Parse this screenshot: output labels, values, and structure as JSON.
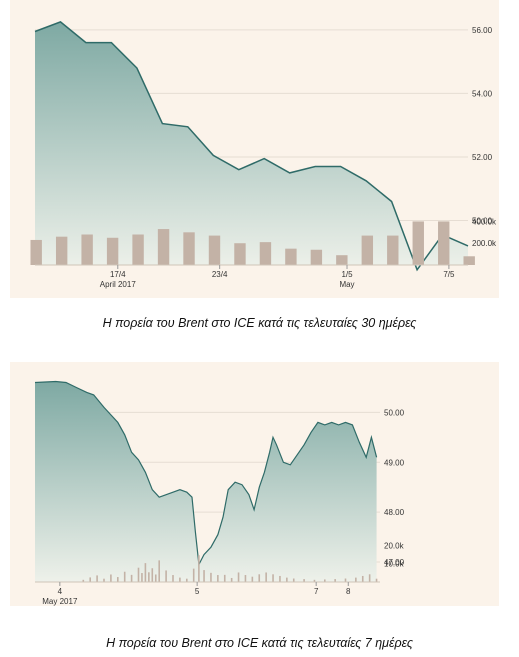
{
  "captions": {
    "chart1": "Η πορεία του Brent στο ICE κατά τις τελευταίες 30 ημέρες",
    "chart2": "Η πορεία του Brent στο ICE κατά τις τελευταίες 7 ημέρες"
  },
  "colors": {
    "background": "#fbf3ea",
    "line": "#2f6b68",
    "area_top": "#7ea9a3",
    "area_bottom": "#eef1ea",
    "volume_bar": "#c3b2a6",
    "grid": "#e6ddd3"
  },
  "chart_data": [
    {
      "type": "area",
      "title": "",
      "price_axis": {
        "ticks": [
          "56.00",
          "54.00",
          "52.00",
          "50.00"
        ],
        "values": [
          56,
          54,
          52,
          50
        ],
        "ylim": [
          48.6,
          56.5
        ]
      },
      "volume_axis": {
        "ticks": [
          "400.0k",
          "200.0k"
        ],
        "values": [
          400000,
          200000
        ],
        "ylim": [
          0,
          560000
        ]
      },
      "x_ticks": [
        {
          "label": "17/4",
          "sub": "April 2017",
          "index": 3.25
        },
        {
          "label": "23/4",
          "sub": "",
          "index": 7.25
        },
        {
          "label": "1/5",
          "sub": "May",
          "index": 12.25
        },
        {
          "label": "7/5",
          "sub": "",
          "index": 16.25
        }
      ],
      "n_points": 18,
      "price": [
        55.95,
        56.25,
        55.6,
        55.6,
        54.8,
        53.05,
        52.95,
        52.05,
        51.6,
        51.95,
        51.5,
        51.7,
        51.7,
        51.25,
        50.6,
        48.45,
        49.55,
        49.2
      ],
      "volume": [
        230000,
        260000,
        280000,
        250000,
        280000,
        330000,
        300000,
        270000,
        200000,
        210000,
        150000,
        140000,
        90000,
        270000,
        270000,
        400000,
        400000,
        80000
      ]
    },
    {
      "type": "area",
      "title": "",
      "price_axis": {
        "ticks": [
          "50.00",
          "49.00",
          "48.00",
          "47.00"
        ],
        "values": [
          50,
          49,
          48,
          47
        ],
        "ylim": [
          46.6,
          50.85
        ]
      },
      "volume_axis": {
        "ticks": [
          "20.0k",
          "10.0k"
        ],
        "values": [
          20000,
          10000
        ],
        "ylim": [
          0,
          30000
        ]
      },
      "x_ticks": [
        {
          "label": "4",
          "sub": "May 2017",
          "x": 0.072
        },
        {
          "label": "5",
          "sub": "",
          "x": 0.47
        },
        {
          "label": "7",
          "sub": "",
          "x": 0.815
        },
        {
          "label": "8",
          "sub": "",
          "x": 0.908
        }
      ],
      "price": [
        [
          0.0,
          50.6
        ],
        [
          0.06,
          50.62
        ],
        [
          0.09,
          50.6
        ],
        [
          0.12,
          50.5
        ],
        [
          0.15,
          50.4
        ],
        [
          0.17,
          50.35
        ],
        [
          0.2,
          50.1
        ],
        [
          0.22,
          49.95
        ],
        [
          0.24,
          49.8
        ],
        [
          0.26,
          49.55
        ],
        [
          0.28,
          49.2
        ],
        [
          0.3,
          49.05
        ],
        [
          0.32,
          48.8
        ],
        [
          0.34,
          48.45
        ],
        [
          0.36,
          48.3
        ],
        [
          0.38,
          48.35
        ],
        [
          0.4,
          48.4
        ],
        [
          0.42,
          48.45
        ],
        [
          0.44,
          48.4
        ],
        [
          0.455,
          48.3
        ],
        [
          0.465,
          47.6
        ],
        [
          0.475,
          46.95
        ],
        [
          0.49,
          47.15
        ],
        [
          0.51,
          47.3
        ],
        [
          0.53,
          47.55
        ],
        [
          0.545,
          47.9
        ],
        [
          0.56,
          48.45
        ],
        [
          0.58,
          48.6
        ],
        [
          0.6,
          48.55
        ],
        [
          0.62,
          48.35
        ],
        [
          0.635,
          48.05
        ],
        [
          0.65,
          48.5
        ],
        [
          0.665,
          48.8
        ],
        [
          0.68,
          49.2
        ],
        [
          0.69,
          49.5
        ],
        [
          0.7,
          49.35
        ],
        [
          0.72,
          49.0
        ],
        [
          0.74,
          48.95
        ],
        [
          0.76,
          49.15
        ],
        [
          0.78,
          49.35
        ],
        [
          0.8,
          49.6
        ],
        [
          0.82,
          49.8
        ],
        [
          0.84,
          49.75
        ],
        [
          0.86,
          49.8
        ],
        [
          0.88,
          49.75
        ],
        [
          0.9,
          49.8
        ],
        [
          0.92,
          49.75
        ],
        [
          0.94,
          49.4
        ],
        [
          0.96,
          49.1
        ],
        [
          0.975,
          49.5
        ],
        [
          0.99,
          49.1
        ]
      ],
      "volume": [
        [
          0.14,
          1200
        ],
        [
          0.16,
          2500
        ],
        [
          0.18,
          3600
        ],
        [
          0.2,
          1800
        ],
        [
          0.22,
          4100
        ],
        [
          0.24,
          2700
        ],
        [
          0.26,
          5600
        ],
        [
          0.28,
          3900
        ],
        [
          0.3,
          7800
        ],
        [
          0.31,
          4900
        ],
        [
          0.32,
          10300
        ],
        [
          0.33,
          5300
        ],
        [
          0.34,
          7500
        ],
        [
          0.35,
          4100
        ],
        [
          0.36,
          11800
        ],
        [
          0.38,
          6300
        ],
        [
          0.4,
          3800
        ],
        [
          0.42,
          2400
        ],
        [
          0.44,
          1800
        ],
        [
          0.46,
          7300
        ],
        [
          0.475,
          14600
        ],
        [
          0.49,
          6500
        ],
        [
          0.51,
          5000
        ],
        [
          0.53,
          3800
        ],
        [
          0.55,
          3900
        ],
        [
          0.57,
          2200
        ],
        [
          0.59,
          5200
        ],
        [
          0.61,
          3800
        ],
        [
          0.63,
          2900
        ],
        [
          0.65,
          4200
        ],
        [
          0.67,
          5200
        ],
        [
          0.69,
          4200
        ],
        [
          0.71,
          3300
        ],
        [
          0.73,
          2400
        ],
        [
          0.75,
          1900
        ],
        [
          0.78,
          1600
        ],
        [
          0.81,
          1200
        ],
        [
          0.84,
          1400
        ],
        [
          0.87,
          1600
        ],
        [
          0.9,
          1900
        ],
        [
          0.93,
          2400
        ],
        [
          0.95,
          3300
        ],
        [
          0.97,
          4200
        ],
        [
          0.99,
          1800
        ]
      ]
    }
  ]
}
